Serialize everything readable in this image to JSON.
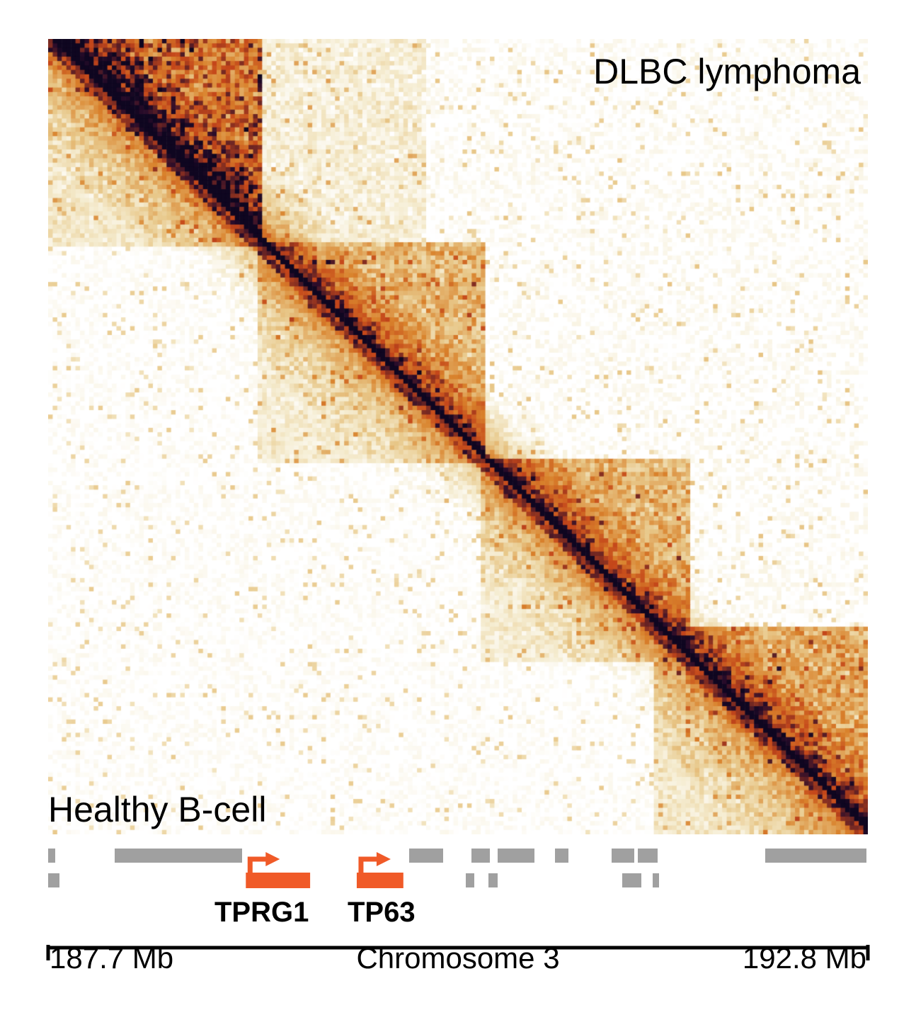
{
  "chart_data": {
    "type": "heatmap",
    "title": "",
    "upper_triangle_label": "DLBC lymphoma",
    "lower_triangle_label": "Healthy B-cell",
    "colormap": [
      "#ffffff",
      "#f5ecd0",
      "#e8c88a",
      "#d9822c",
      "#c4461a",
      "#2a0c2a",
      "#0f0620"
    ],
    "xaxis": {
      "title": "Chromosome 3",
      "start_label": "187.7 Mb",
      "end_label": "192.8 Mb",
      "range_mb": [
        187.7,
        192.8
      ]
    },
    "genes": [
      {
        "name": "TPRG1",
        "start_mb": 188.93,
        "end_mb": 189.33,
        "strand": "+",
        "highlight": true,
        "color": "#f05a28"
      },
      {
        "name": "TP63",
        "start_mb": 189.62,
        "end_mb": 189.91,
        "strand": "+",
        "highlight": true,
        "color": "#f05a28"
      }
    ],
    "other_genes_color": "#a0a0a0"
  }
}
